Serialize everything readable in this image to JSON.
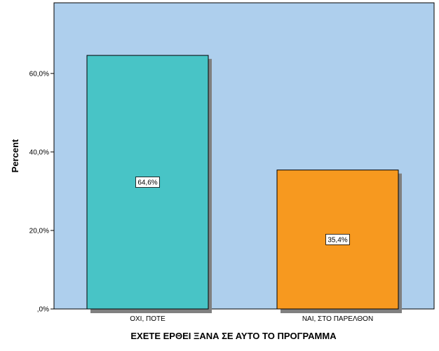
{
  "chart_data": {
    "type": "bar",
    "title": "",
    "xlabel": "ΕΧΕΤΕ ΕΡΘΕΙ ΞΑΝΑ ΣΕ ΑΥΤΟ ΤΟ ΠΡΟΓΡΑΜΜΑ",
    "ylabel": "Percent",
    "categories": [
      "ΟΧΙ, ΠΟΤΕ",
      "ΝΑΙ, ΣΤΟ ΠΑΡΕΛΘΟΝ"
    ],
    "values": [
      64.6,
      35.4
    ],
    "data_labels": [
      "64,6%",
      "35,4%"
    ],
    "colors": [
      "#48c4c6",
      "#f7991f"
    ],
    "ylim": [
      0,
      78.0
    ],
    "yticks": [
      0,
      20,
      40,
      60
    ],
    "ytick_labels": [
      ",0%",
      "20,0%",
      "40,0%",
      "60,0%"
    ],
    "grid": false,
    "background": "#aecfed"
  }
}
